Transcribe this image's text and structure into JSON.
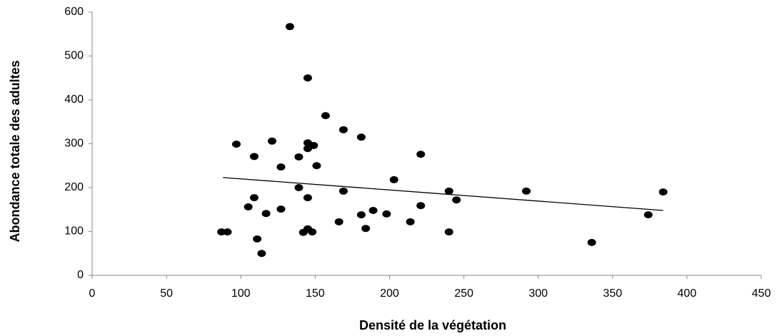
{
  "chart_data": {
    "type": "scatter",
    "x_label": "Densité de la végétation",
    "y_label": "Abondance totale des adultes",
    "xlim": [
      0,
      450
    ],
    "xticks": [
      0,
      50,
      100,
      150,
      200,
      250,
      300,
      350,
      400,
      450
    ],
    "ylim": [
      0,
      600
    ],
    "yticks": [
      0,
      100,
      200,
      300,
      400,
      500,
      600
    ],
    "grid": false,
    "color": "#000000",
    "x": [
      87,
      91,
      97,
      109,
      109,
      105,
      111,
      114,
      117,
      121,
      127,
      127,
      133,
      139,
      139,
      142,
      145,
      145,
      145,
      145,
      145,
      148,
      149,
      151,
      157,
      166,
      169,
      169,
      181,
      181,
      184,
      189,
      198,
      203,
      214,
      221,
      221,
      240,
      240,
      245,
      292,
      336,
      374,
      384
    ],
    "values": [
      99,
      99,
      299,
      271,
      177,
      156,
      83,
      50,
      141,
      306,
      247,
      151,
      567,
      270,
      200,
      98,
      450,
      302,
      289,
      177,
      106,
      99,
      296,
      250,
      364,
      122,
      332,
      192,
      315,
      138,
      107,
      148,
      140,
      218,
      122,
      276,
      159,
      192,
      99,
      172,
      192,
      75,
      138,
      190
    ],
    "trendline": {
      "x": [
        88,
        384
      ],
      "values": [
        223,
        148
      ],
      "color": "#000000"
    }
  }
}
